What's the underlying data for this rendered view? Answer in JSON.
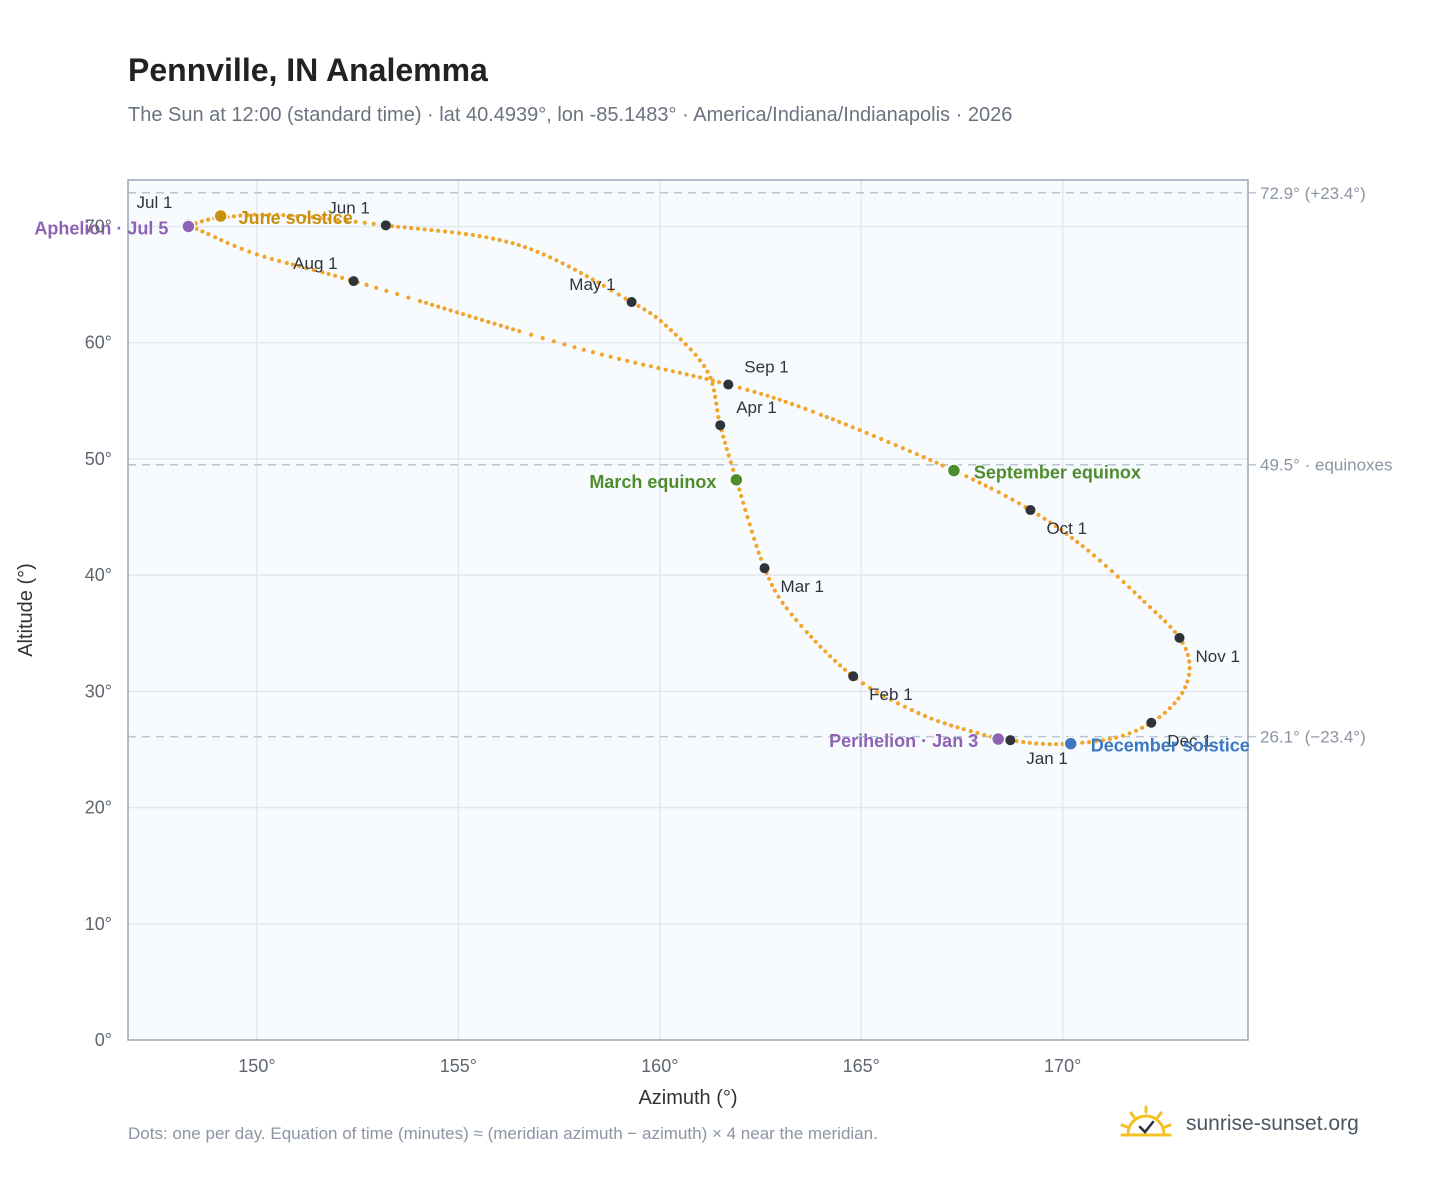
{
  "chart_data": {
    "type": "scatter",
    "title": "Pennville, IN Analemma",
    "subtitle": "The Sun at 12:00 (standard time) · lat 40.4939°, lon -85.1483° · America/Indiana/Indianapolis · 2026",
    "xlabel": "Azimuth (°)",
    "ylabel": "Altitude (°)",
    "xlim": [
      146.8,
      174.6
    ],
    "ylim": [
      0,
      74
    ],
    "x_ticks": [
      150,
      155,
      160,
      165,
      170
    ],
    "x_tick_labels": [
      "150°",
      "155°",
      "160°",
      "165°",
      "170°"
    ],
    "y_ticks": [
      0,
      10,
      20,
      30,
      40,
      50,
      60,
      70
    ],
    "y_tick_labels": [
      "0°",
      "10°",
      "20°",
      "30°",
      "40°",
      "50°",
      "60°",
      "70°"
    ],
    "grid": true,
    "reference_lines": [
      {
        "y": 72.9,
        "label": "72.9° (+23.4°)"
      },
      {
        "y": 49.5,
        "label": "49.5° · equinoxes"
      },
      {
        "y": 26.1,
        "label": "26.1° (−23.4°)"
      }
    ],
    "path_knots": [
      [
        168.7,
        25.8
      ],
      [
        169.4,
        25.5
      ],
      [
        170.2,
        25.5
      ],
      [
        171.3,
        26.0
      ],
      [
        172.2,
        27.3
      ],
      [
        172.9,
        29.5
      ],
      [
        173.15,
        32.0
      ],
      [
        172.9,
        34.6
      ],
      [
        172.0,
        37.8
      ],
      [
        170.6,
        42.2
      ],
      [
        169.2,
        45.6
      ],
      [
        167.3,
        49.0
      ],
      [
        164.0,
        53.8
      ],
      [
        161.7,
        56.4
      ],
      [
        158.0,
        59.5
      ],
      [
        152.4,
        65.3
      ],
      [
        150.0,
        67.6
      ],
      [
        148.5,
        69.8
      ],
      [
        148.3,
        70.0
      ],
      [
        148.8,
        70.6
      ],
      [
        149.2,
        70.8
      ],
      [
        150.5,
        71.0
      ],
      [
        153.2,
        70.1
      ],
      [
        156.5,
        68.4
      ],
      [
        159.3,
        63.5
      ],
      [
        160.3,
        61.0
      ],
      [
        161.2,
        57.4
      ],
      [
        161.5,
        52.9
      ],
      [
        161.9,
        48.2
      ],
      [
        162.6,
        40.6
      ],
      [
        163.3,
        36.5
      ],
      [
        164.8,
        31.3
      ],
      [
        166.5,
        28.0
      ],
      [
        168.0,
        26.3
      ],
      [
        168.7,
        25.8
      ]
    ],
    "month_markers": [
      {
        "label": "Jan 1",
        "x": 168.7,
        "y": 25.8
      },
      {
        "label": "Feb 1",
        "x": 164.8,
        "y": 31.3
      },
      {
        "label": "Mar 1",
        "x": 162.6,
        "y": 40.6
      },
      {
        "label": "Apr 1",
        "x": 161.5,
        "y": 52.9
      },
      {
        "label": "May 1",
        "x": 159.3,
        "y": 63.5
      },
      {
        "label": "Jun 1",
        "x": 153.2,
        "y": 70.1
      },
      {
        "label": "Jul 1",
        "x": 148.3,
        "y": 70.2
      },
      {
        "label": "Aug 1",
        "x": 152.4,
        "y": 65.3
      },
      {
        "label": "Sep 1",
        "x": 161.7,
        "y": 56.4
      },
      {
        "label": "Oct 1",
        "x": 169.2,
        "y": 45.6
      },
      {
        "label": "Nov 1",
        "x": 172.9,
        "y": 34.6
      },
      {
        "label": "Dec 1",
        "x": 172.2,
        "y": 27.3
      }
    ],
    "events": [
      {
        "label": "June solstice",
        "x": 149.1,
        "y": 70.9,
        "color": "#c8900f"
      },
      {
        "label": "Aphelion · Jul 5",
        "x": 148.3,
        "y": 70.0,
        "color": "#8e63b5"
      },
      {
        "label": "March equinox",
        "x": 161.9,
        "y": 48.2,
        "color": "#4e8c2d"
      },
      {
        "label": "September equinox",
        "x": 167.3,
        "y": 49.0,
        "color": "#4e8c2d"
      },
      {
        "label": "Perihelion · Jan 3",
        "x": 168.4,
        "y": 25.9,
        "color": "#8e63b5"
      },
      {
        "label": "December solstice",
        "x": 170.2,
        "y": 25.5,
        "color": "#3b78c0"
      }
    ],
    "colors": {
      "path": "#f2a52c",
      "month_marker": "#2f343b",
      "plot_bg": "#f8fbfe",
      "grid": "#e3e8ee",
      "frame": "#9aa6b4",
      "ref_line": "#b8c6cf"
    }
  },
  "footnote": "Dots: one per day. Equation of time (minutes) ≈ (meridian azimuth − azimuth) × 4 near the meridian.",
  "brand": {
    "text": "sunrise-sunset.org",
    "icon": "sun-icon",
    "icon_color": "#f5c024"
  }
}
